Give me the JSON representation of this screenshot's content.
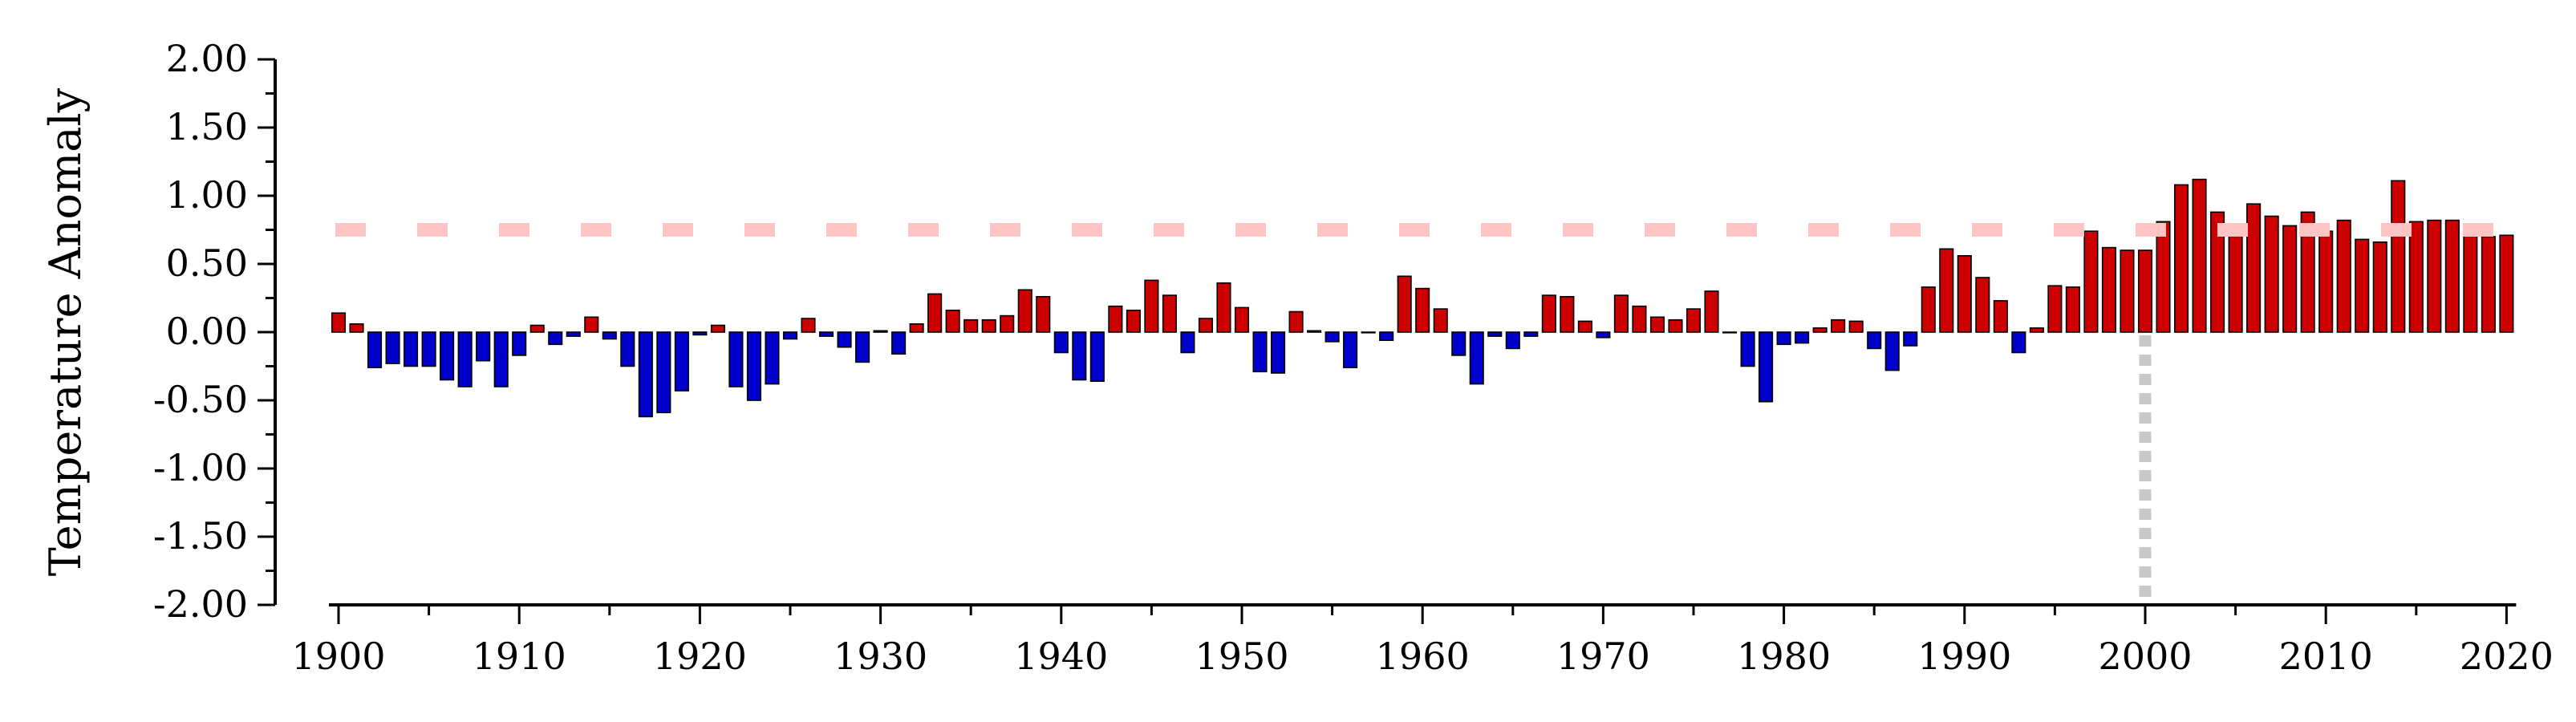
{
  "chart_data": {
    "type": "bar",
    "ylabel": "Temperature Anomaly",
    "xlabel": "",
    "title": "",
    "ylim": [
      -2.0,
      2.0
    ],
    "xlim": [
      1899.5,
      2020.5
    ],
    "y_ticks": [
      "2.00",
      "1.50",
      "1.00",
      "0.50",
      "0.00",
      "-0.50",
      "-1.00",
      "-1.50",
      "-2.00"
    ],
    "y_tick_values": [
      2.0,
      1.5,
      1.0,
      0.5,
      0.0,
      -0.5,
      -1.0,
      -1.5,
      -2.0
    ],
    "x_ticks": [
      "1900",
      "1910",
      "1920",
      "1930",
      "1940",
      "1950",
      "1960",
      "1970",
      "1980",
      "1990",
      "2000",
      "2010",
      "2020"
    ],
    "x_tick_values": [
      1900,
      1910,
      1920,
      1930,
      1940,
      1950,
      1960,
      1970,
      1980,
      1990,
      2000,
      2010,
      2020
    ],
    "grid": false,
    "reference_line": {
      "value": 0.75,
      "style": "dashed",
      "color": "#ffc4c4"
    },
    "marker_line": {
      "x": 2000,
      "style": "dotted",
      "color": "#c8c8c8"
    },
    "colors": {
      "positive": "#cc0000",
      "negative": "#0000cc",
      "bar_edge": "#000000"
    },
    "series": [
      {
        "x": [
          1900,
          1901,
          1902,
          1903,
          1904,
          1905,
          1906,
          1907,
          1908,
          1909,
          1910,
          1911,
          1912,
          1913,
          1914,
          1915,
          1916,
          1917,
          1918,
          1919,
          1920,
          1921,
          1922,
          1923,
          1924,
          1925,
          1926,
          1927,
          1928,
          1929,
          1930,
          1931,
          1932,
          1933,
          1934,
          1935,
          1936,
          1937,
          1938,
          1939,
          1940,
          1941,
          1942,
          1943,
          1944,
          1945,
          1946,
          1947,
          1948,
          1949,
          1950,
          1951,
          1952,
          1953,
          1954,
          1955,
          1956,
          1957,
          1958,
          1959,
          1960,
          1961,
          1962,
          1963,
          1964,
          1965,
          1966,
          1967,
          1968,
          1969,
          1970,
          1971,
          1972,
          1973,
          1974,
          1975,
          1976,
          1977,
          1978,
          1979,
          1980,
          1981,
          1982,
          1983,
          1984,
          1985,
          1986,
          1987,
          1988,
          1989,
          1990,
          1991,
          1992,
          1993,
          1994,
          1995,
          1996,
          1997,
          1998,
          1999,
          2000,
          2001,
          2002,
          2003,
          2004,
          2005,
          2006,
          2007,
          2008,
          2009,
          2010,
          2011,
          2012,
          2013,
          2014,
          2015,
          2016,
          2017,
          2018,
          2019,
          2020
        ],
        "values": [
          0.14,
          0.06,
          -0.26,
          -0.23,
          -0.25,
          -0.25,
          -0.35,
          -0.4,
          -0.21,
          -0.4,
          -0.17,
          0.05,
          -0.09,
          -0.03,
          0.11,
          -0.05,
          -0.25,
          -0.62,
          -0.59,
          -0.43,
          -0.02,
          0.05,
          -0.4,
          -0.5,
          -0.38,
          -0.05,
          0.1,
          -0.03,
          -0.11,
          -0.22,
          0.01,
          -0.16,
          0.06,
          0.28,
          0.16,
          0.09,
          0.09,
          0.12,
          0.31,
          0.26,
          -0.15,
          -0.35,
          -0.36,
          0.19,
          0.16,
          0.38,
          0.27,
          -0.15,
          0.1,
          0.36,
          0.18,
          -0.29,
          -0.3,
          0.15,
          0.01,
          -0.07,
          -0.26,
          0.0,
          -0.06,
          0.41,
          0.32,
          0.17,
          -0.17,
          -0.38,
          -0.03,
          -0.12,
          -0.03,
          0.27,
          0.26,
          0.08,
          -0.04,
          0.27,
          0.19,
          0.11,
          0.09,
          0.17,
          0.3,
          0.0,
          -0.25,
          -0.51,
          -0.09,
          -0.08,
          0.03,
          0.09,
          0.08,
          -0.12,
          -0.28,
          -0.1,
          0.33,
          0.61,
          0.56,
          0.4,
          0.23,
          -0.15,
          0.03,
          0.34,
          0.33,
          0.74,
          0.62,
          0.6,
          0.6,
          0.81,
          1.08,
          1.12,
          0.88,
          0.74,
          0.94,
          0.85,
          0.78,
          0.88,
          0.74,
          0.82,
          0.68,
          0.66,
          1.11,
          0.81,
          0.82,
          0.82,
          0.72,
          0.7,
          0.71
        ]
      }
    ]
  }
}
